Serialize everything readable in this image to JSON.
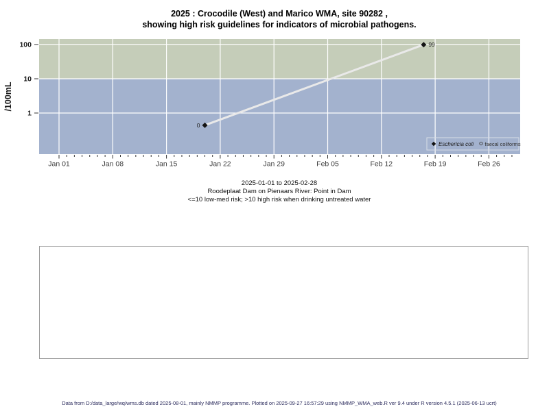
{
  "title": {
    "line1": "2025 : Crocodile (West) and Marico WMA, site 90282 ,",
    "line2": "showing high risk guidelines for indicators of microbial pathogens."
  },
  "chart_data": {
    "type": "line",
    "ylabel": "/100mL",
    "y_scale": "log10",
    "y_ticks": [
      1,
      10,
      100
    ],
    "x_tick_labels": [
      "Jan 01",
      "Jan 08",
      "Jan 15",
      "Jan 22",
      "Jan 29",
      "Feb 05",
      "Feb 12",
      "Feb 19",
      "Feb 26"
    ],
    "x_tick_days": [
      0,
      7,
      14,
      21,
      28,
      35,
      42,
      49,
      56
    ],
    "x_minor_tick_max_day": 59,
    "ylim_plotted": [
      0.063,
      145
    ],
    "risk_threshold": 10,
    "risk_zones": [
      {
        "name": "high-risk-zone",
        "value_from": 10,
        "value_to": 145,
        "color": "#c5cdb9"
      },
      {
        "name": "low-med-risk-zone",
        "value_from": 0.063,
        "value_to": 10,
        "color": "#a3b2ce"
      }
    ],
    "grid_color": "#ffffff",
    "connector_line_color": "#e9e9e9",
    "series": [
      {
        "name": "Eschericia coli",
        "marker": "filled-diamond",
        "color": "#141414",
        "points": [
          {
            "date_est": "2025-01-20",
            "day_from_jan01": 19,
            "value": 0,
            "plotted_value": 0.44,
            "label": "0",
            "label_side": "left"
          },
          {
            "date_est": "2025-02-17",
            "day_from_jan01": 47.5,
            "value": 99,
            "plotted_value": 99,
            "label": "99",
            "label_side": "right"
          }
        ]
      },
      {
        "name": "faecal coliforms",
        "marker": "open-circle",
        "color": "#333333",
        "points": []
      }
    ],
    "legend": {
      "position": "bottom-right-inside",
      "items": [
        {
          "label": "Eschericia coli",
          "marker": "filled-diamond",
          "italic": true
        },
        {
          "label": "faecal coliforms",
          "marker": "open-circle",
          "italic": false
        }
      ]
    }
  },
  "caption": {
    "line1": "2025-01-01 to 2025-02-28",
    "line2": "Roodeplaat Dam on Pienaars River: Point in Dam",
    "line3": "<=10 low-med risk; >10 high risk when drinking untreated water"
  },
  "footer": {
    "text": "Data from D:/data_large/wq/wms.db dated 2025-08-01, mainly NMMP programme. Plotted on 2025-09-27 16:57:29 using NMMP_WMA_web.R ver 9.4 under R version 4.5.1 (2025-06-13 ucrt)"
  }
}
